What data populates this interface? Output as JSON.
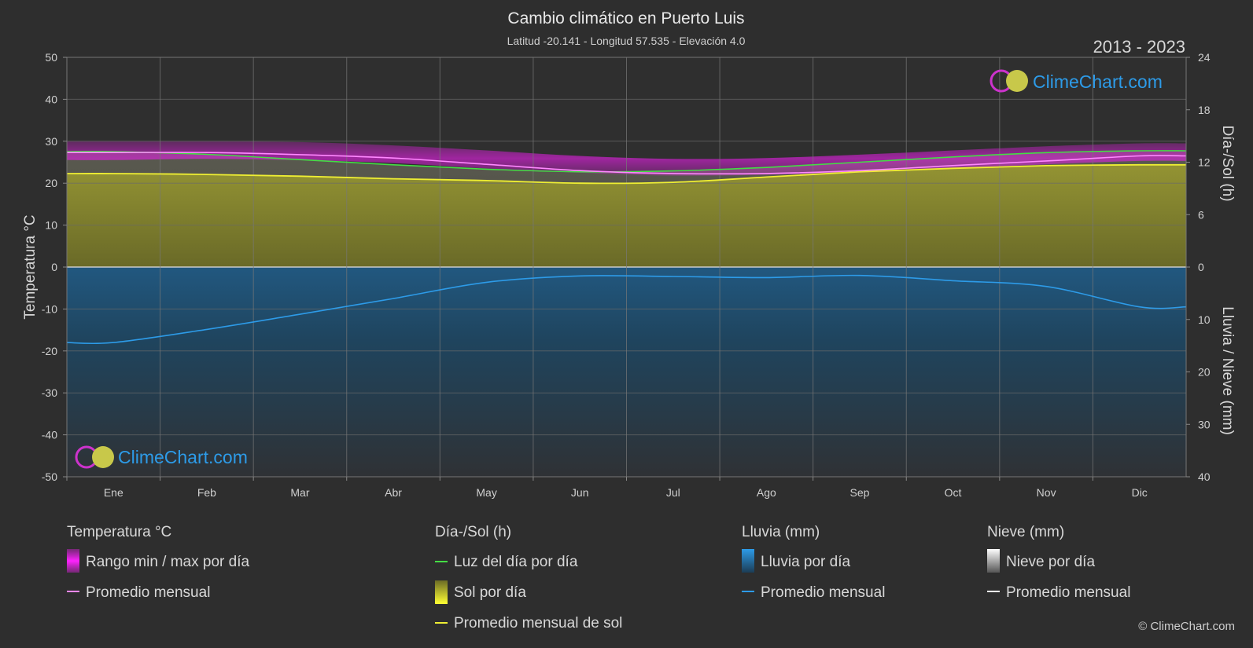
{
  "title": "Cambio climático en Puerto Luis",
  "subtitle": "Latitud -20.141 - Longitud 57.535 - Elevación 4.0",
  "year_range": "2013 - 2023",
  "brand": "ClimeChart.com",
  "copyright": "© ClimeChart.com",
  "colors": {
    "background": "#2e2e2e",
    "temp_range": "#e020e0",
    "temp_avg": "#ff88ff",
    "daylight": "#44dd44",
    "sun_fill": "#8a8a2a",
    "sun_avg": "#eeee33",
    "rain": "#1e5f8c",
    "rain_avg": "#2d9be8",
    "snow_avg": "#ffffff",
    "brand": "#2d9be8"
  },
  "legend": {
    "temperature": {
      "title": "Temperatura °C",
      "items": [
        "Rango min / max por día",
        "Promedio mensual"
      ]
    },
    "sun": {
      "title": "Día-/Sol (h)",
      "items": [
        "Luz del día por día",
        "Sol por día",
        "Promedio mensual de sol"
      ]
    },
    "rain": {
      "title": "Lluvia (mm)",
      "items": [
        "Lluvia por día",
        "Promedio mensual"
      ]
    },
    "snow": {
      "title": "Nieve (mm)",
      "items": [
        "Nieve por día",
        "Promedio mensual"
      ]
    }
  },
  "chart_data": {
    "type": "line",
    "categories": [
      "Ene",
      "Feb",
      "Mar",
      "Abr",
      "May",
      "Jun",
      "Jul",
      "Ago",
      "Sep",
      "Oct",
      "Nov",
      "Dic"
    ],
    "ylabel": "Temperatura °C",
    "y2label_top": "Día-/Sol (h)",
    "y2label_bottom": "Lluvia / Nieve (mm)",
    "ylim": [
      -50,
      50
    ],
    "yticks": [
      50,
      40,
      30,
      20,
      10,
      0,
      -10,
      -20,
      -30,
      -40,
      -50
    ],
    "y2_hours_ticks": [
      24,
      18,
      12,
      6,
      0
    ],
    "y2_hours_lim": [
      0,
      24
    ],
    "y2_mm_ticks": [
      10,
      20,
      30,
      40
    ],
    "y2_mm_lim": [
      0,
      40
    ],
    "grid": true,
    "series": [
      {
        "name": "Rango min / max por día",
        "axis": "temp",
        "min": [
          25.5,
          25.8,
          25.5,
          24.8,
          23.5,
          22.5,
          21.8,
          22.0,
          22.5,
          23.5,
          24.5,
          25.3
        ],
        "max": [
          30.0,
          30.0,
          29.8,
          29.0,
          27.8,
          26.5,
          25.8,
          26.0,
          26.8,
          27.8,
          28.8,
          29.5
        ]
      },
      {
        "name": "Promedio mensual",
        "axis": "temp",
        "values": [
          27.3,
          27.3,
          26.8,
          26.0,
          24.5,
          23.0,
          22.3,
          22.3,
          23.0,
          24.2,
          25.3,
          26.5
        ]
      },
      {
        "name": "Luz del día por día",
        "axis": "hours",
        "values": [
          13.2,
          12.9,
          12.3,
          11.7,
          11.2,
          10.9,
          11.0,
          11.4,
          12.0,
          12.6,
          13.1,
          13.3
        ]
      },
      {
        "name": "Promedio mensual de sol",
        "axis": "hours",
        "values": [
          10.7,
          10.6,
          10.4,
          10.1,
          9.9,
          9.6,
          9.7,
          10.3,
          10.9,
          11.3,
          11.6,
          11.7
        ]
      },
      {
        "name": "Promedio mensual",
        "axis": "rain_mm",
        "values": [
          14.4,
          11.9,
          9.0,
          6.0,
          2.9,
          1.7,
          1.8,
          2.0,
          1.6,
          2.6,
          3.7,
          7.6
        ]
      }
    ]
  }
}
